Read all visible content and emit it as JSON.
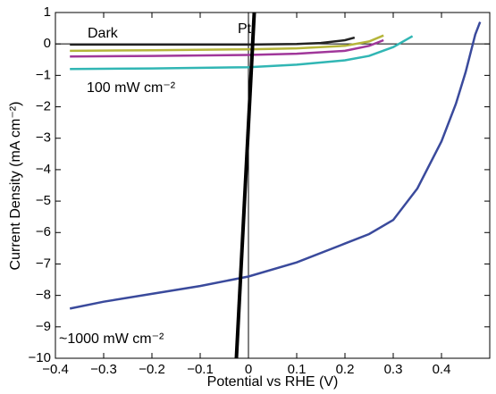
{
  "chart_data": {
    "type": "line",
    "xlabel": "Potential vs RHE (V)",
    "ylabel": "Current Density (mA cm⁻²)",
    "xlim": [
      -0.4,
      0.5
    ],
    "ylim": [
      -10,
      1
    ],
    "xticks": [
      {
        "value": -0.4,
        "label": "−0.4"
      },
      {
        "value": -0.3,
        "label": "−0.3"
      },
      {
        "value": -0.2,
        "label": "−0.2"
      },
      {
        "value": -0.1,
        "label": "−0.1"
      },
      0,
      0.1,
      0.2,
      0.3,
      0.4
    ],
    "yticks": [
      {
        "value": -10,
        "label": "−10"
      },
      {
        "value": -9,
        "label": "−9"
      },
      {
        "value": -8,
        "label": "−8"
      },
      {
        "value": -7,
        "label": "−7"
      },
      {
        "value": -6,
        "label": "−6"
      },
      {
        "value": -5,
        "label": "−5"
      },
      {
        "value": -4,
        "label": "−4"
      },
      {
        "value": -3,
        "label": "−3"
      },
      {
        "value": -2,
        "label": "−2"
      },
      {
        "value": -1,
        "label": "−1"
      },
      0,
      1
    ],
    "annotations": [
      "Dark",
      "Pt",
      "100 mW cm⁻²",
      "~1000 mW cm⁻²"
    ],
    "series": [
      {
        "color": "#222222",
        "width": 2.5,
        "x": [
          -0.37,
          -0.2,
          0,
          0.1,
          0.15,
          0.2,
          0.22
        ],
        "values": [
          -0.02,
          -0.02,
          -0.02,
          0,
          0.03,
          0.12,
          0.2
        ]
      },
      {
        "color": "#b5b53a",
        "width": 2.5,
        "x": [
          -0.37,
          -0.2,
          0,
          0.1,
          0.2,
          0.25,
          0.28
        ],
        "values": [
          -0.22,
          -0.2,
          -0.17,
          -0.14,
          -0.06,
          0.08,
          0.27
        ]
      },
      {
        "color": "#a0379a",
        "width": 2.5,
        "x": [
          -0.37,
          -0.2,
          0,
          0.1,
          0.2,
          0.25,
          0.28
        ],
        "values": [
          -0.4,
          -0.38,
          -0.35,
          -0.31,
          -0.22,
          -0.06,
          0.12
        ]
      },
      {
        "color": "#31b6b4",
        "width": 2.5,
        "x": [
          -0.37,
          -0.2,
          0,
          0.1,
          0.2,
          0.25,
          0.3,
          0.34
        ],
        "values": [
          -0.8,
          -0.78,
          -0.74,
          -0.66,
          -0.52,
          -0.38,
          -0.1,
          0.25
        ]
      },
      {
        "color": "#3a4a9c",
        "width": 2.5,
        "x": [
          -0.37,
          -0.3,
          -0.2,
          -0.1,
          0,
          0.1,
          0.2,
          0.25,
          0.3,
          0.35,
          0.4,
          0.43,
          0.45,
          0.47,
          0.48
        ],
        "values": [
          -8.42,
          -8.2,
          -7.95,
          -7.7,
          -7.4,
          -6.95,
          -6.35,
          -6.05,
          -5.6,
          -4.6,
          -3.1,
          -1.9,
          -0.9,
          0.3,
          0.7
        ]
      },
      {
        "color": "#000000",
        "width": 4,
        "x": [
          -0.025,
          0.012
        ],
        "values": [
          -10,
          1
        ]
      }
    ]
  }
}
